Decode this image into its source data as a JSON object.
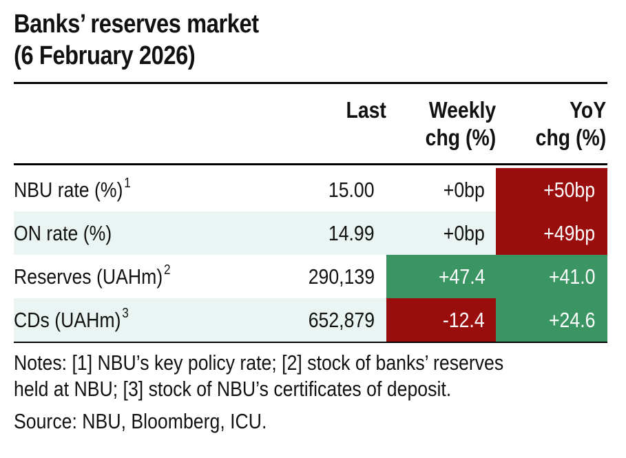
{
  "title": {
    "line1": "Banks’ reserves market",
    "line2": "(6 February 2026)"
  },
  "columns": {
    "last": "Last",
    "weekly_line1": "Weekly",
    "weekly_line2": "chg (%)",
    "yoy_line1": "YoY",
    "yoy_line2": "chg (%)"
  },
  "rows": [
    {
      "label": "NBU rate (%)",
      "note": "1",
      "last": "15.00",
      "weekly": "+0bp",
      "yoy": "+50bp",
      "weekly_color": "none",
      "yoy_color": "#990d0d"
    },
    {
      "label": "ON rate (%)",
      "note": "",
      "last": "14.99",
      "weekly": "+0bp",
      "yoy": "+49bp",
      "weekly_color": "none",
      "yoy_color": "#990d0d"
    },
    {
      "label": "Reserves (UAHm)",
      "note": "2",
      "last": "290,139",
      "weekly": "+47.4",
      "yoy": "+41.0",
      "weekly_color": "#3b9563",
      "yoy_color": "#3b9563"
    },
    {
      "label": "CDs (UAHm)",
      "note": "3",
      "last": "652,879",
      "weekly": "-12.4",
      "yoy": "+24.6",
      "weekly_color": "#990d0d",
      "yoy_color": "#3b9563"
    }
  ],
  "notes": {
    "line1": "Notes: [1] NBU’s key policy rate; [2] stock of banks’ reserves",
    "line2": "held at NBU; [3] stock of NBU’s certificates of deposit."
  },
  "source": "Source: NBU, Bloomberg, ICU.",
  "colors": {
    "shade": "#e9f4f3",
    "negative": "#990d0d",
    "positive": "#3b9563"
  }
}
